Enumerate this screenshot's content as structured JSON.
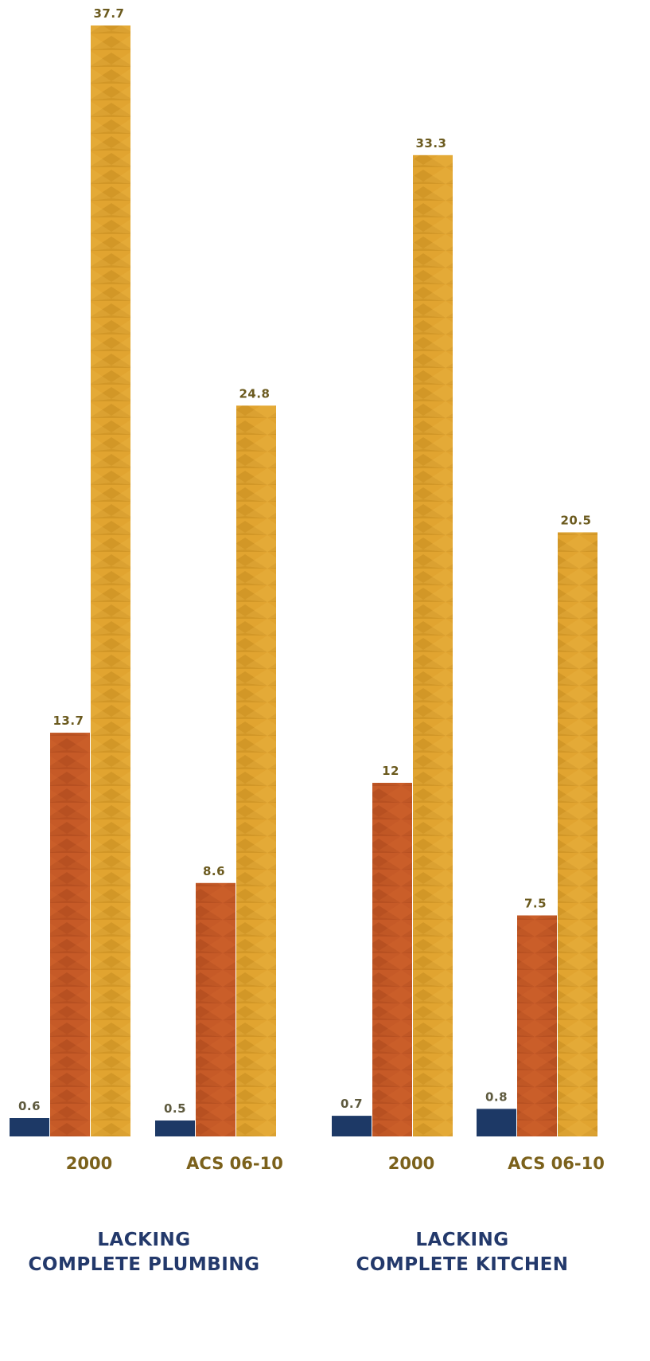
{
  "colors": {
    "navy": "#1d3966",
    "orange": "#c65a27",
    "gold": "#e1a430",
    "value_text": "#6b5a1e",
    "category_text": "#7b611b",
    "title_text": "#23396b"
  },
  "chart_data": {
    "type": "bar",
    "title": "",
    "xlabel": "",
    "ylabel": "",
    "ylim": [
      0,
      37.7
    ],
    "grid": false,
    "legend": "none",
    "groups": [
      {
        "title_lines": [
          "LACKING",
          "COMPLETE PLUMBING"
        ],
        "categories": [
          "2000",
          "ACS 06-10"
        ],
        "series": [
          {
            "color": "#1d3966",
            "values": [
              0.6,
              0.5
            ],
            "labels": [
              "0.6",
              "0.5"
            ]
          },
          {
            "color": "#c65a27",
            "values": [
              13.7,
              8.6
            ],
            "labels": [
              "13.7",
              "8.6"
            ]
          },
          {
            "color": "#e1a430",
            "values": [
              37.7,
              24.8
            ],
            "labels": [
              "37.7",
              "24.8"
            ]
          }
        ]
      },
      {
        "title_lines": [
          "LACKING",
          "COMPLETE KITCHEN"
        ],
        "categories": [
          "2000",
          "ACS 06-10"
        ],
        "series": [
          {
            "color": "#1d3966",
            "values": [
              0.7,
              0.8
            ],
            "labels": [
              "0.7",
              "0.8"
            ]
          },
          {
            "color": "#c65a27",
            "values": [
              12,
              7.5
            ],
            "labels": [
              "12",
              "7.5"
            ]
          },
          {
            "color": "#e1a430",
            "values": [
              33.3,
              20.5
            ],
            "labels": [
              "33.3",
              "20.5"
            ]
          }
        ]
      }
    ]
  }
}
